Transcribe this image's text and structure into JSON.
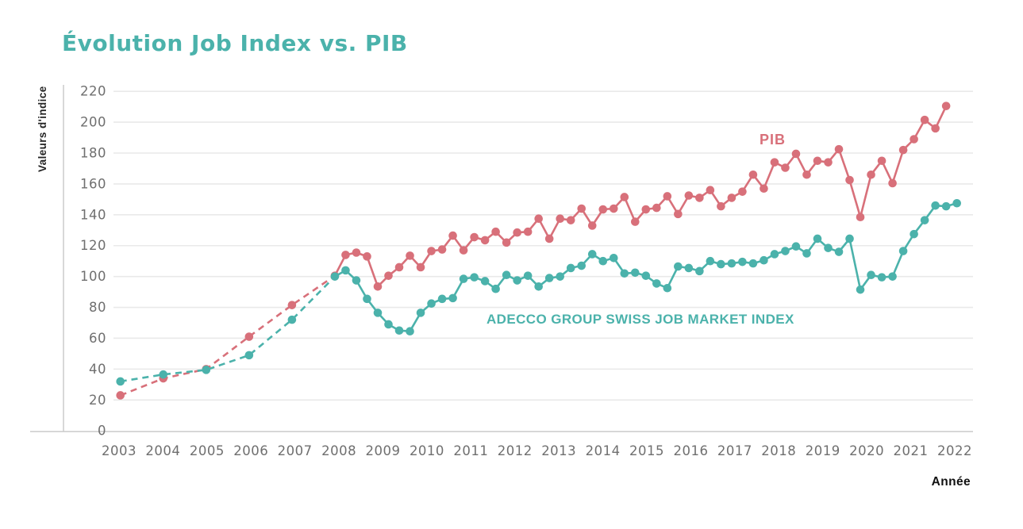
{
  "header": {
    "title": "Évolution Job Index vs. PIB"
  },
  "chart_data": {
    "type": "line",
    "title": "Évolution Job Index vs. PIB",
    "xlabel": "Année",
    "ylabel": "Valeurs d'indice",
    "ylim": [
      0,
      220
    ],
    "y_ticks": [
      0,
      20,
      40,
      60,
      80,
      100,
      120,
      140,
      160,
      180,
      200,
      220
    ],
    "x_ticks": [
      "2003",
      "2004",
      "2005",
      "2006",
      "2007",
      "2008",
      "2009",
      "2010",
      "2011",
      "2012",
      "2013",
      "2014",
      "2015",
      "2016",
      "2017",
      "2018",
      "2019",
      "2020",
      "2021",
      "2022"
    ],
    "grid": "horizontal",
    "legend_position": "inline-labels",
    "colors": {
      "pib": "#d8707a",
      "adecco": "#4bb2ab",
      "grid": "#e9e9e9",
      "axis": "#cfcfcf",
      "tick_text": "#6f6f6f"
    },
    "series": [
      {
        "name": "PIB",
        "label": "PIB",
        "color": "#d8707a",
        "style_note": "dashed before 2008, solid quarterly from 2008",
        "annual": {
          "years": [
            2003,
            2004,
            2005,
            2006,
            2007
          ],
          "values": [
            23,
            34,
            40,
            61,
            81.5
          ]
        },
        "quarterly": {
          "start_year": 2008,
          "values": [
            100.5,
            114,
            115.5,
            113,
            93.5,
            100.5,
            106,
            113.5,
            106,
            116.5,
            117.5,
            126.5,
            117,
            125.5,
            123.5,
            129,
            122,
            128.5,
            129,
            137.5,
            124.5,
            137.5,
            136.5,
            144,
            133,
            143.5,
            144,
            151.5,
            135.5,
            143.5,
            144.5,
            152,
            140.5,
            152.5,
            151,
            156,
            145.5,
            151,
            155,
            166,
            157,
            174,
            170.5,
            179.5,
            166,
            175,
            174,
            182.5,
            162.5,
            138.5,
            166,
            175,
            160.5,
            182,
            189,
            201.5,
            196,
            210.5
          ]
        }
      },
      {
        "name": "ADECCO GROUP SWISS JOB MARKET INDEX",
        "label": "ADECCO GROUP SWISS JOB MARKET INDEX",
        "color": "#4bb2ab",
        "style_note": "dashed before 2008, solid quarterly from 2008",
        "annual": {
          "years": [
            2003,
            2004,
            2005,
            2006,
            2007
          ],
          "values": [
            32,
            36.5,
            39.5,
            49,
            72
          ]
        },
        "quarterly": {
          "start_year": 2008,
          "values": [
            100,
            104,
            97.5,
            85.5,
            76.5,
            69,
            65,
            64.5,
            76.5,
            82.5,
            85.5,
            86,
            98.5,
            99.5,
            97,
            92,
            101,
            97.5,
            100.5,
            93.5,
            99,
            100,
            105.5,
            107,
            114.5,
            110,
            112,
            102,
            102.5,
            100.5,
            95.5,
            92.5,
            106.5,
            105.5,
            103.5,
            110,
            108,
            108.5,
            109.5,
            108.5,
            110.5,
            114.5,
            116.5,
            119.5,
            115,
            124.5,
            118.5,
            116,
            124.5,
            91.5,
            101,
            99.5,
            100,
            116.5,
            127.5,
            136.5,
            146,
            145.5,
            147.5
          ]
        }
      }
    ]
  }
}
